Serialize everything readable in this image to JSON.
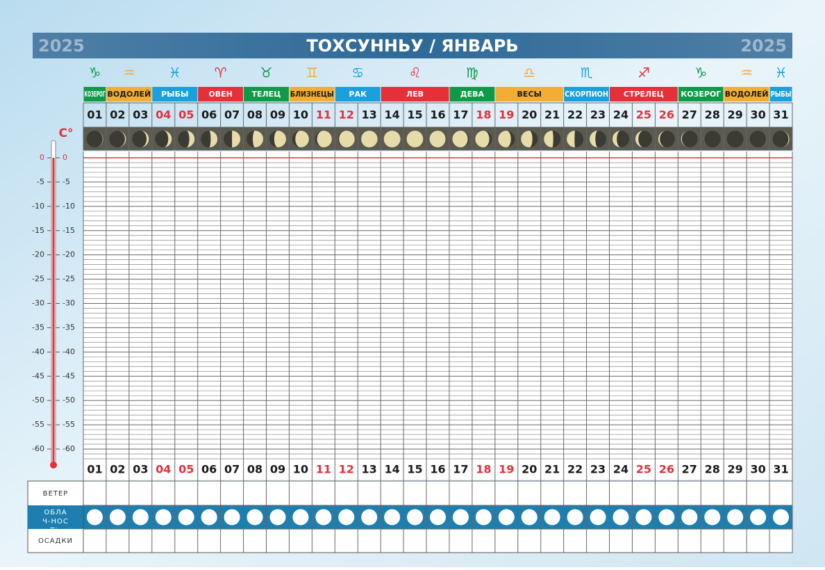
{
  "header": {
    "year_left": "2025",
    "title": "ТОХСУННЬУ / ЯНВАРЬ",
    "year_right": "2025"
  },
  "zodiac": [
    {
      "symbol": "♑",
      "name": "КОЗЕРОГ",
      "span": 1,
      "color": "#0f9a48",
      "text_color": "#ffffff"
    },
    {
      "symbol": "♒",
      "name": "ВОДОЛЕЙ",
      "span": 2,
      "color": "#f3ad35",
      "text_color": "#1a1a1a"
    },
    {
      "symbol": "♓",
      "name": "РЫБЫ",
      "span": 2,
      "color": "#1aa0dc",
      "text_color": "#ffffff"
    },
    {
      "symbol": "♈",
      "name": "ОВЕН",
      "span": 2,
      "color": "#e5303a",
      "text_color": "#ffffff"
    },
    {
      "symbol": "♉",
      "name": "ТЕЛЕЦ",
      "span": 2,
      "color": "#0f9a48",
      "text_color": "#ffffff"
    },
    {
      "symbol": "♊",
      "name": "БЛИЗНЕЦЫ",
      "span": 2,
      "color": "#f3ad35",
      "text_color": "#1a1a1a"
    },
    {
      "symbol": "♋",
      "name": "РАК",
      "span": 2,
      "color": "#1aa0dc",
      "text_color": "#ffffff"
    },
    {
      "symbol": "♌",
      "name": "ЛЕВ",
      "span": 3,
      "color": "#e5303a",
      "text_color": "#ffffff"
    },
    {
      "symbol": "♍",
      "name": "ДЕВА",
      "span": 2,
      "color": "#0f9a48",
      "text_color": "#ffffff"
    },
    {
      "symbol": "♎",
      "name": "ВЕСЫ",
      "span": 3,
      "color": "#f3ad35",
      "text_color": "#1a1a1a"
    },
    {
      "symbol": "♏",
      "name": "СКОРПИОН",
      "span": 2,
      "color": "#1aa0dc",
      "text_color": "#ffffff"
    },
    {
      "symbol": "♐",
      "name": "СТРЕЛЕЦ",
      "span": 3,
      "color": "#e5303a",
      "text_color": "#ffffff"
    },
    {
      "symbol": "♑",
      "name": "КОЗЕРОГ",
      "span": 2,
      "color": "#0f9a48",
      "text_color": "#ffffff"
    },
    {
      "symbol": "♒",
      "name": "ВОДОЛЕЙ",
      "span": 2,
      "color": "#f3ad35",
      "text_color": "#1a1a1a"
    },
    {
      "symbol": "♓",
      "name": "РЫБЫ",
      "span": 1,
      "color": "#1aa0dc",
      "text_color": "#ffffff"
    }
  ],
  "days": [
    {
      "label": "01",
      "holiday": false,
      "moon_phase": 0.05
    },
    {
      "label": "02",
      "holiday": false,
      "moon_phase": 0.08
    },
    {
      "label": "03",
      "holiday": false,
      "moon_phase": 0.12
    },
    {
      "label": "04",
      "holiday": true,
      "moon_phase": 0.15
    },
    {
      "label": "05",
      "holiday": true,
      "moon_phase": 0.19
    },
    {
      "label": "06",
      "holiday": false,
      "moon_phase": 0.22
    },
    {
      "label": "07",
      "holiday": false,
      "moon_phase": 0.25
    },
    {
      "label": "08",
      "holiday": false,
      "moon_phase": 0.29
    },
    {
      "label": "09",
      "holiday": false,
      "moon_phase": 0.32
    },
    {
      "label": "10",
      "holiday": false,
      "moon_phase": 0.36
    },
    {
      "label": "11",
      "holiday": true,
      "moon_phase": 0.39
    },
    {
      "label": "12",
      "holiday": true,
      "moon_phase": 0.42
    },
    {
      "label": "13",
      "holiday": false,
      "moon_phase": 0.46
    },
    {
      "label": "14",
      "holiday": false,
      "moon_phase": 0.49
    },
    {
      "label": "15",
      "holiday": false,
      "moon_phase": 0.53
    },
    {
      "label": "16",
      "holiday": false,
      "moon_phase": 0.56
    },
    {
      "label": "17",
      "holiday": false,
      "moon_phase": 0.59
    },
    {
      "label": "18",
      "holiday": true,
      "moon_phase": 0.63
    },
    {
      "label": "19",
      "holiday": true,
      "moon_phase": 0.66
    },
    {
      "label": "20",
      "holiday": false,
      "moon_phase": 0.69
    },
    {
      "label": "21",
      "holiday": false,
      "moon_phase": 0.73
    },
    {
      "label": "22",
      "holiday": false,
      "moon_phase": 0.76
    },
    {
      "label": "23",
      "holiday": false,
      "moon_phase": 0.8
    },
    {
      "label": "24",
      "holiday": false,
      "moon_phase": 0.83
    },
    {
      "label": "25",
      "holiday": true,
      "moon_phase": 0.86
    },
    {
      "label": "26",
      "holiday": true,
      "moon_phase": 0.9
    },
    {
      "label": "27",
      "holiday": false,
      "moon_phase": 0.93
    },
    {
      "label": "28",
      "holiday": false,
      "moon_phase": 0.97
    },
    {
      "label": "29",
      "holiday": false,
      "moon_phase": 0.0
    },
    {
      "label": "30",
      "holiday": false,
      "moon_phase": 0.03
    },
    {
      "label": "31",
      "holiday": false,
      "moon_phase": 0.07
    }
  ],
  "temperature": {
    "unit": "C°",
    "ylim": [
      -62,
      0
    ],
    "yticks": [
      0,
      -5,
      -10,
      -15,
      -20,
      -25,
      -30,
      -35,
      -40,
      -45,
      -50,
      -55,
      -60
    ]
  },
  "rows": {
    "wind": "ВЕТЕР",
    "cloudiness": "ОБЛАЧ-НОСТЬ",
    "precipitation": "ОСАДКИ"
  }
}
